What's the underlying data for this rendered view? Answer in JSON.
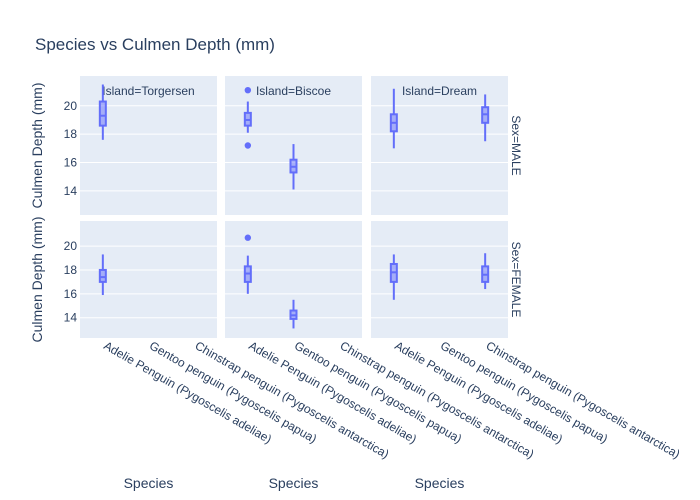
{
  "chart_data": {
    "type": "box",
    "title": "Species vs Culmen Depth (mm)",
    "xlabel": "Species",
    "ylabel": "Culmen Depth (mm)",
    "color": "#636efa",
    "ylim": [
      12.3,
      22.1
    ],
    "yticks": [
      14,
      16,
      18,
      20
    ],
    "categories": [
      "Adelie Penguin (Pygoscelis adeliae)",
      "Gentoo penguin (Pygoscelis papua)",
      "Chinstrap penguin (Pygoscelis antarctica)"
    ],
    "col_facets": [
      "Island=Torgersen",
      "Island=Biscoe",
      "Island=Dream"
    ],
    "row_facets": [
      "Sex=MALE",
      "Sex=FEMALE"
    ],
    "boxes": [
      {
        "row": 0,
        "col": 0,
        "category": 0,
        "min": 17.6,
        "q1": 18.6,
        "median": 19.3,
        "q3": 20.3,
        "max": 21.5,
        "outliers": []
      },
      {
        "row": 0,
        "col": 1,
        "category": 0,
        "min": 18.1,
        "q1": 18.6,
        "median": 19.0,
        "q3": 19.5,
        "max": 20.3,
        "outliers": [
          21.1,
          17.2
        ]
      },
      {
        "row": 0,
        "col": 1,
        "category": 1,
        "min": 14.1,
        "q1": 15.3,
        "median": 15.7,
        "q3": 16.2,
        "max": 17.3,
        "outliers": []
      },
      {
        "row": 0,
        "col": 2,
        "category": 0,
        "min": 17.0,
        "q1": 18.2,
        "median": 18.8,
        "q3": 19.4,
        "max": 21.2,
        "outliers": []
      },
      {
        "row": 0,
        "col": 2,
        "category": 2,
        "min": 17.5,
        "q1": 18.8,
        "median": 19.4,
        "q3": 19.9,
        "max": 20.8,
        "outliers": []
      },
      {
        "row": 1,
        "col": 0,
        "category": 0,
        "min": 15.9,
        "q1": 17.0,
        "median": 17.4,
        "q3": 18.0,
        "max": 19.3,
        "outliers": []
      },
      {
        "row": 1,
        "col": 1,
        "category": 0,
        "min": 16.0,
        "q1": 17.0,
        "median": 17.7,
        "q3": 18.3,
        "max": 19.2,
        "outliers": [
          20.7
        ]
      },
      {
        "row": 1,
        "col": 1,
        "category": 1,
        "min": 13.1,
        "q1": 13.9,
        "median": 14.2,
        "q3": 14.6,
        "max": 15.5,
        "outliers": []
      },
      {
        "row": 1,
        "col": 2,
        "category": 0,
        "min": 15.5,
        "q1": 17.0,
        "median": 17.8,
        "q3": 18.5,
        "max": 19.3,
        "outliers": []
      },
      {
        "row": 1,
        "col": 2,
        "category": 2,
        "min": 16.4,
        "q1": 17.0,
        "median": 17.6,
        "q3": 18.3,
        "max": 19.4,
        "outliers": []
      }
    ]
  }
}
